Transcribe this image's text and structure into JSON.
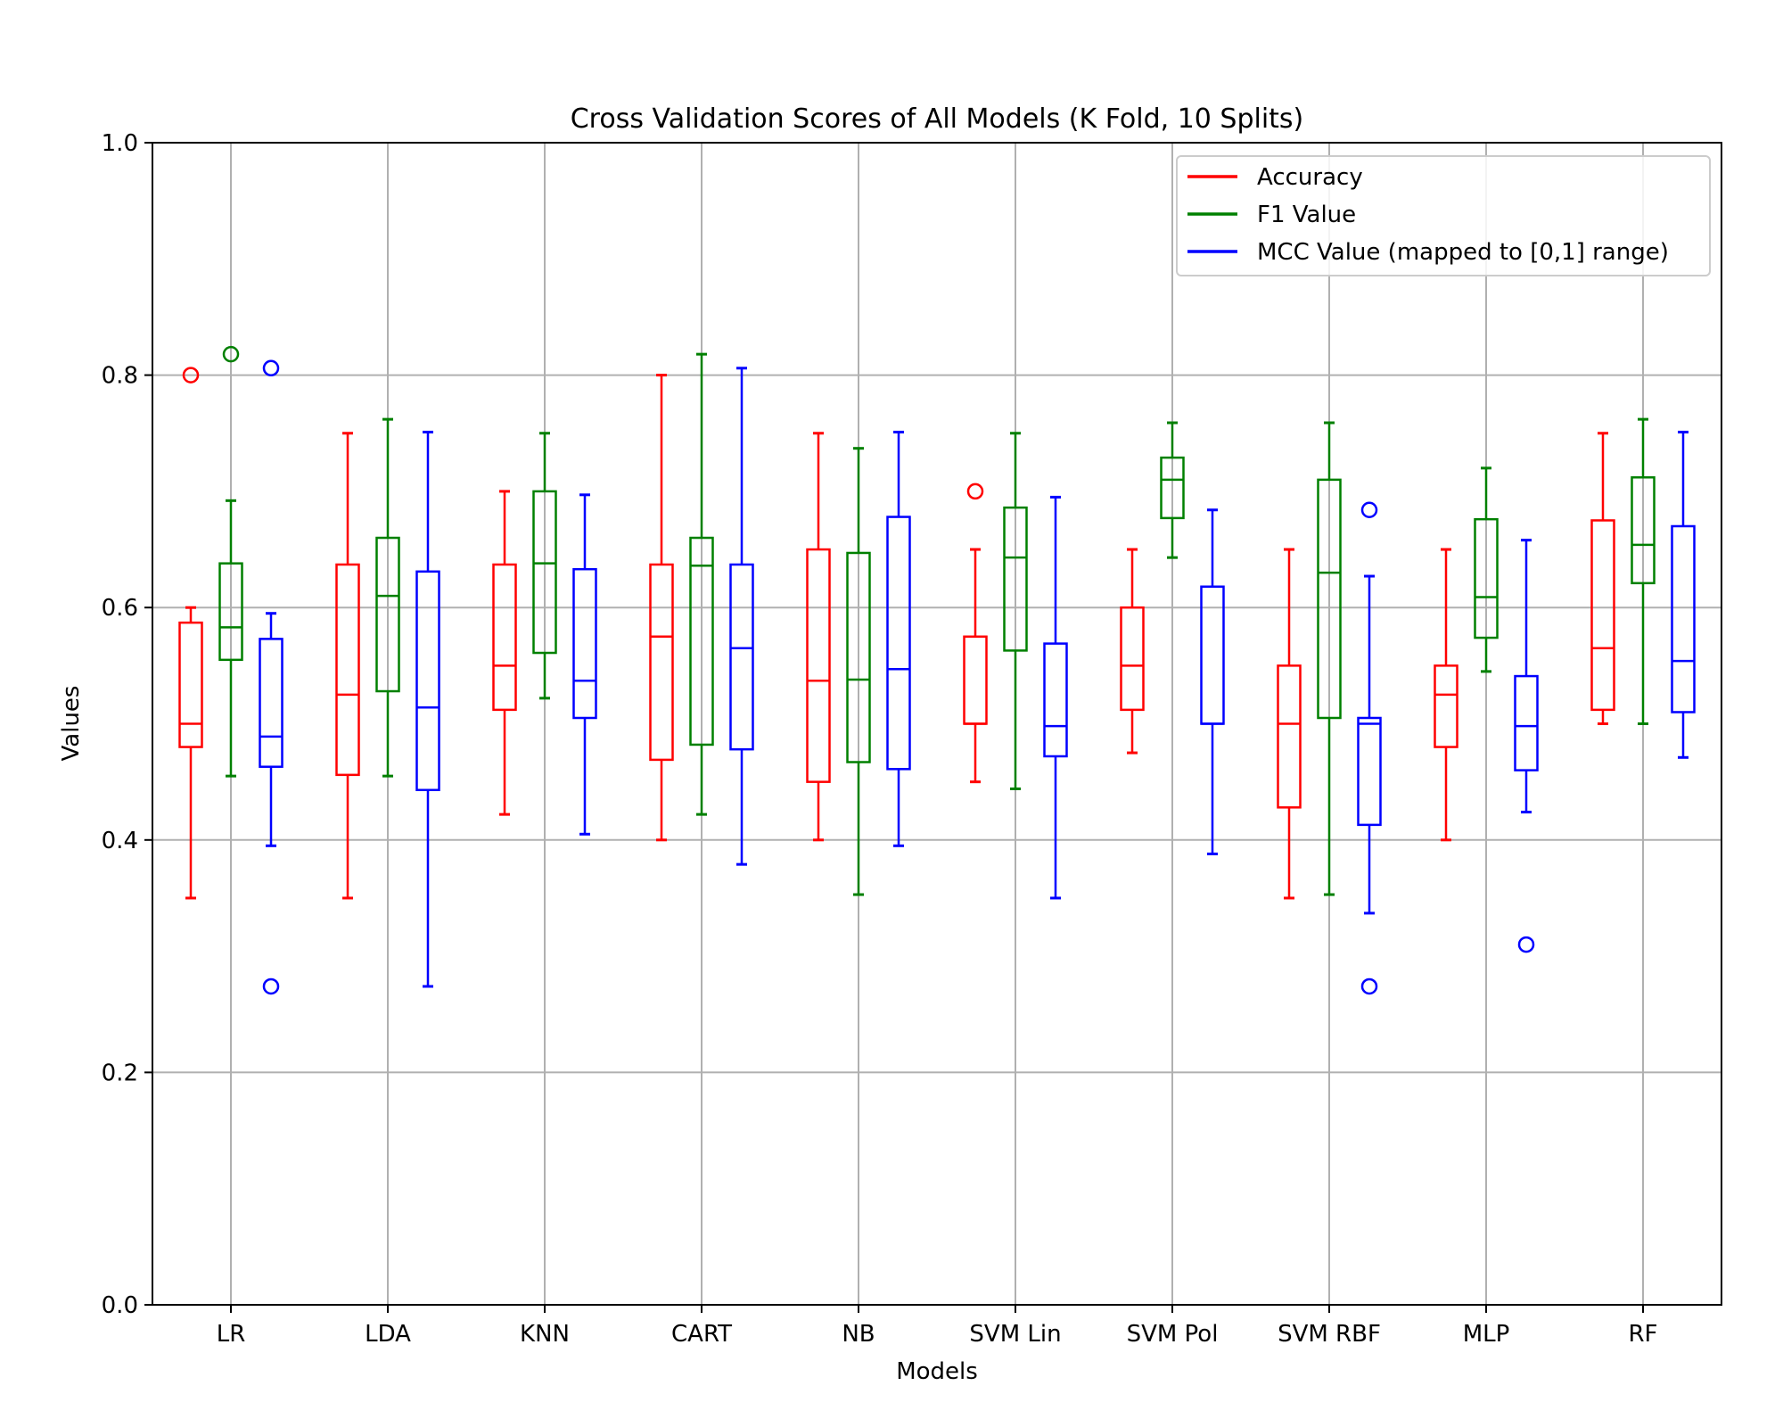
{
  "chart_data": {
    "type": "box",
    "title": "Cross Validation Scores of All Models (K Fold, 10 Splits)",
    "xlabel": "Models",
    "ylabel": "Values",
    "ylim": [
      0.0,
      1.0
    ],
    "yticks": [
      "0.0",
      "0.2",
      "0.4",
      "0.6",
      "0.8",
      "1.0"
    ],
    "grid": true,
    "legend_position": "top-right",
    "categories": [
      "LR",
      "LDA",
      "KNN",
      "CART",
      "NB",
      "SVM Lin",
      "SVM Pol",
      "SVM RBF",
      "MLP",
      "RF"
    ],
    "series": [
      {
        "name": "Accuracy",
        "color": "#ff0000",
        "boxes": [
          {
            "whislo": 0.35,
            "q1": 0.48,
            "med": 0.5,
            "q3": 0.587,
            "whishi": 0.6,
            "fliers": [
              0.8
            ]
          },
          {
            "whislo": 0.35,
            "q1": 0.456,
            "med": 0.525,
            "q3": 0.637,
            "whishi": 0.75,
            "fliers": []
          },
          {
            "whislo": 0.422,
            "q1": 0.512,
            "med": 0.55,
            "q3": 0.637,
            "whishi": 0.7,
            "fliers": []
          },
          {
            "whislo": 0.4,
            "q1": 0.469,
            "med": 0.575,
            "q3": 0.637,
            "whishi": 0.8,
            "fliers": []
          },
          {
            "whislo": 0.4,
            "q1": 0.45,
            "med": 0.537,
            "q3": 0.65,
            "whishi": 0.75,
            "fliers": []
          },
          {
            "whislo": 0.45,
            "q1": 0.5,
            "med": 0.5,
            "q3": 0.575,
            "whishi": 0.65,
            "fliers": [
              0.7
            ]
          },
          {
            "whislo": 0.475,
            "q1": 0.512,
            "med": 0.55,
            "q3": 0.6,
            "whishi": 0.65,
            "fliers": []
          },
          {
            "whislo": 0.35,
            "q1": 0.428,
            "med": 0.5,
            "q3": 0.55,
            "whishi": 0.65,
            "fliers": []
          },
          {
            "whislo": 0.4,
            "q1": 0.48,
            "med": 0.525,
            "q3": 0.55,
            "whishi": 0.65,
            "fliers": []
          },
          {
            "whislo": 0.5,
            "q1": 0.512,
            "med": 0.565,
            "q3": 0.675,
            "whishi": 0.75,
            "fliers": []
          }
        ]
      },
      {
        "name": "F1 Value",
        "color": "#008000",
        "boxes": [
          {
            "whislo": 0.455,
            "q1": 0.555,
            "med": 0.583,
            "q3": 0.638,
            "whishi": 0.692,
            "fliers": [
              0.818
            ]
          },
          {
            "whislo": 0.455,
            "q1": 0.528,
            "med": 0.61,
            "q3": 0.66,
            "whishi": 0.762,
            "fliers": []
          },
          {
            "whislo": 0.522,
            "q1": 0.561,
            "med": 0.638,
            "q3": 0.7,
            "whishi": 0.75,
            "fliers": []
          },
          {
            "whislo": 0.422,
            "q1": 0.482,
            "med": 0.636,
            "q3": 0.66,
            "whishi": 0.818,
            "fliers": []
          },
          {
            "whislo": 0.353,
            "q1": 0.467,
            "med": 0.538,
            "q3": 0.647,
            "whishi": 0.737,
            "fliers": []
          },
          {
            "whislo": 0.444,
            "q1": 0.563,
            "med": 0.643,
            "q3": 0.686,
            "whishi": 0.75,
            "fliers": []
          },
          {
            "whislo": 0.643,
            "q1": 0.677,
            "med": 0.71,
            "q3": 0.729,
            "whishi": 0.759,
            "fliers": []
          },
          {
            "whislo": 0.353,
            "q1": 0.505,
            "med": 0.63,
            "q3": 0.71,
            "whishi": 0.759,
            "fliers": []
          },
          {
            "whislo": 0.545,
            "q1": 0.574,
            "med": 0.609,
            "q3": 0.676,
            "whishi": 0.72,
            "fliers": []
          },
          {
            "whislo": 0.5,
            "q1": 0.621,
            "med": 0.654,
            "q3": 0.712,
            "whishi": 0.762,
            "fliers": []
          }
        ]
      },
      {
        "name": "MCC Value (mapped to [0,1] range)",
        "color": "#0000ff",
        "boxes": [
          {
            "whislo": 0.395,
            "q1": 0.463,
            "med": 0.489,
            "q3": 0.573,
            "whishi": 0.595,
            "fliers": [
              0.806,
              0.274
            ]
          },
          {
            "whislo": 0.274,
            "q1": 0.443,
            "med": 0.514,
            "q3": 0.631,
            "whishi": 0.751,
            "fliers": []
          },
          {
            "whislo": 0.405,
            "q1": 0.505,
            "med": 0.537,
            "q3": 0.633,
            "whishi": 0.697,
            "fliers": []
          },
          {
            "whislo": 0.379,
            "q1": 0.478,
            "med": 0.565,
            "q3": 0.637,
            "whishi": 0.806,
            "fliers": []
          },
          {
            "whislo": 0.395,
            "q1": 0.461,
            "med": 0.547,
            "q3": 0.678,
            "whishi": 0.751,
            "fliers": []
          },
          {
            "whislo": 0.35,
            "q1": 0.472,
            "med": 0.498,
            "q3": 0.569,
            "whishi": 0.695,
            "fliers": []
          },
          {
            "whislo": 0.388,
            "q1": 0.5,
            "med": 0.5,
            "q3": 0.618,
            "whishi": 0.684,
            "fliers": []
          },
          {
            "whislo": 0.337,
            "q1": 0.413,
            "med": 0.5,
            "q3": 0.505,
            "whishi": 0.627,
            "fliers": [
              0.684,
              0.274
            ]
          },
          {
            "whislo": 0.424,
            "q1": 0.46,
            "med": 0.498,
            "q3": 0.541,
            "whishi": 0.658,
            "fliers": [
              0.31
            ]
          },
          {
            "whislo": 0.471,
            "q1": 0.51,
            "med": 0.554,
            "q3": 0.67,
            "whishi": 0.751,
            "fliers": []
          }
        ]
      }
    ]
  }
}
